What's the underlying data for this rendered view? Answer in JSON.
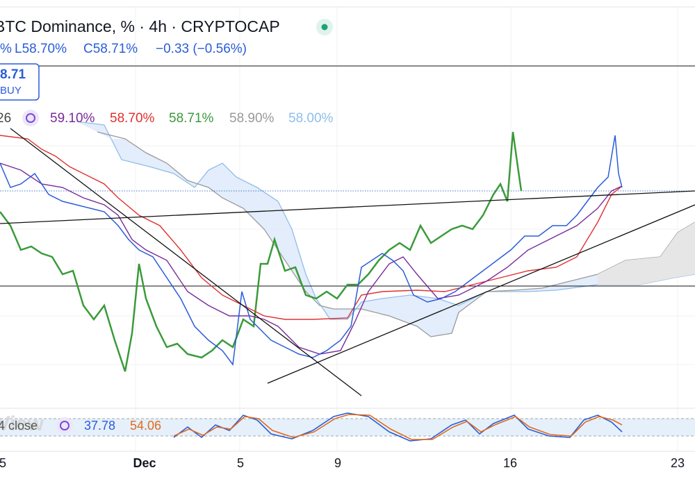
{
  "header": {
    "title": "BTC Dominance, % · 4h · CRYPTOCAP",
    "ohlc": {
      "open_tail": "%",
      "low": "L58.70%",
      "close": "C58.71%",
      "change": "−0.33 (−0.56%)"
    }
  },
  "price_box": {
    "price": "8.71",
    "action": "BUY"
  },
  "indicator": {
    "label": "26",
    "values": [
      "59.10%",
      "58.70%",
      "58.71%",
      "58.90%",
      "58.00%"
    ]
  },
  "oscillator": {
    "watermark": "View",
    "label": "4 close",
    "values": [
      "37.78",
      "54.06"
    ]
  },
  "x_axis": {
    "labels": [
      "5",
      "Dec",
      "5",
      "9",
      "16",
      "23"
    ]
  }
}
